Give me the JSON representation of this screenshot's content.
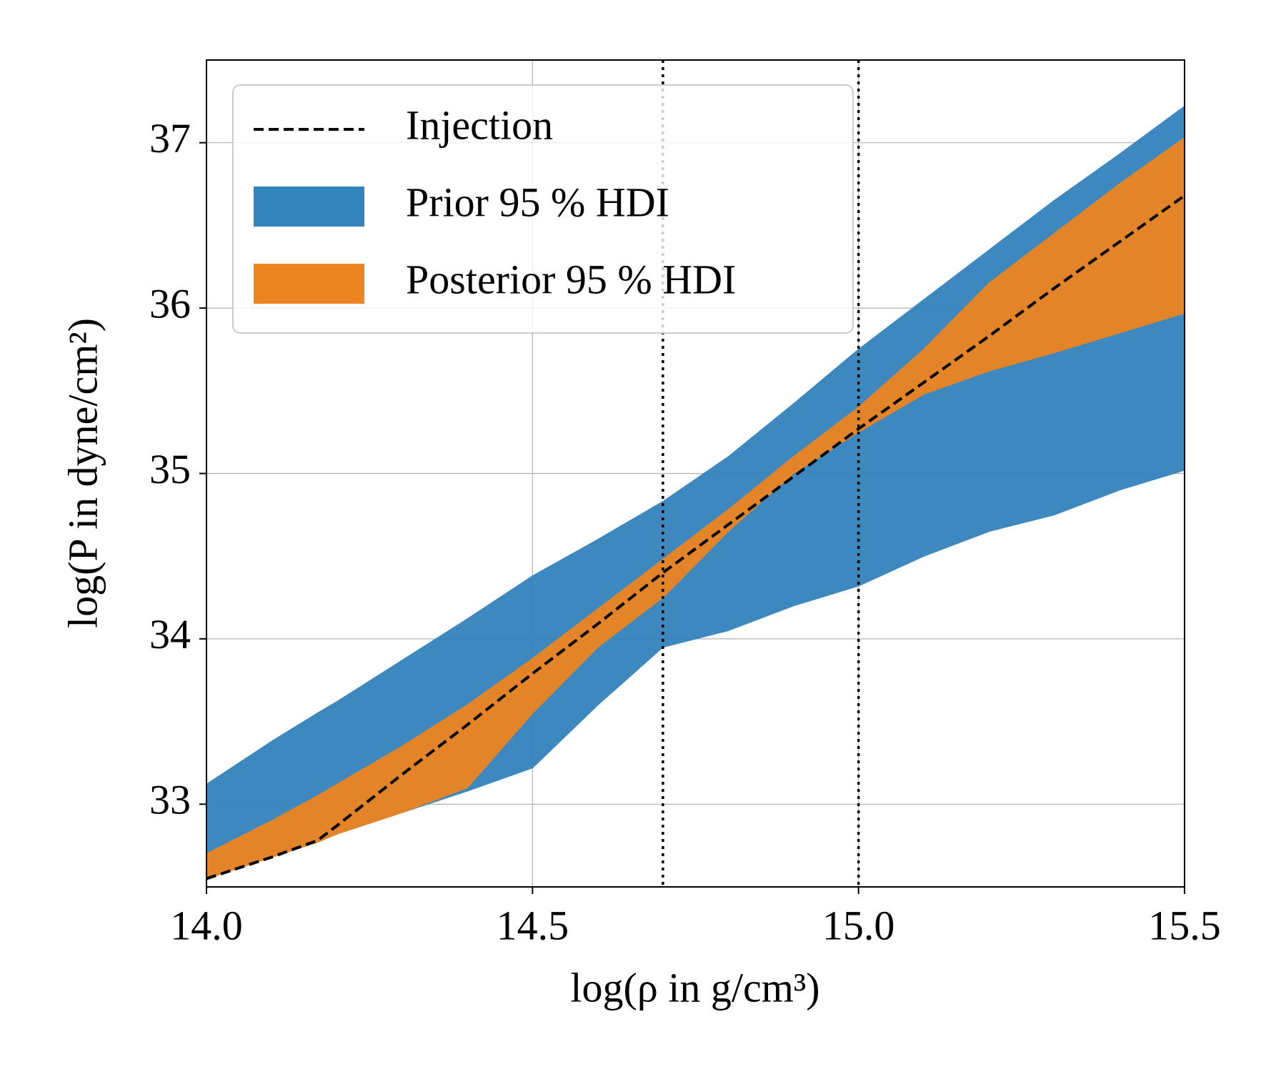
{
  "chart_data": {
    "type": "line",
    "xlabel": "log(ρ in g/cm³)",
    "ylabel": "log(P in dyne/cm²)",
    "x": [
      14.0,
      14.1,
      14.17,
      14.2,
      14.3,
      14.4,
      14.5,
      14.6,
      14.7,
      14.8,
      14.9,
      15.0,
      15.1,
      15.2,
      15.3,
      15.4,
      15.5
    ],
    "series": [
      {
        "name": "Injection",
        "type": "line",
        "color": "#000000",
        "dash": "dashed",
        "values": [
          32.55,
          32.68,
          32.78,
          32.87,
          33.18,
          33.48,
          33.79,
          34.09,
          34.4,
          34.69,
          34.98,
          35.27,
          35.55,
          35.83,
          36.12,
          36.4,
          36.68
        ]
      },
      {
        "name": "Prior 95 % HDI",
        "type": "area",
        "color": "#3383bc",
        "lower": [
          32.55,
          32.68,
          32.77,
          32.82,
          32.95,
          33.08,
          33.22,
          33.6,
          33.95,
          34.05,
          34.2,
          34.32,
          34.5,
          34.65,
          34.75,
          34.9,
          35.02
        ],
        "upper": [
          33.12,
          33.38,
          33.55,
          33.62,
          33.87,
          34.12,
          34.38,
          34.6,
          34.83,
          35.1,
          35.42,
          35.75,
          36.05,
          36.35,
          36.65,
          36.93,
          37.22
        ]
      },
      {
        "name": "Posterior 95 % HDI",
        "type": "area",
        "color": "#ec8420",
        "lower": [
          32.55,
          32.68,
          32.77,
          32.82,
          32.95,
          33.1,
          33.55,
          33.95,
          34.25,
          34.65,
          35.0,
          35.25,
          35.48,
          35.62,
          35.73,
          35.85,
          35.97
        ],
        "upper": [
          32.7,
          32.9,
          33.05,
          33.12,
          33.35,
          33.6,
          33.88,
          34.18,
          34.48,
          34.78,
          35.1,
          35.4,
          35.75,
          36.15,
          36.45,
          36.75,
          37.03
        ]
      }
    ],
    "vlines": [
      14.7,
      15.0
    ],
    "xlim": [
      14.0,
      15.5
    ],
    "ylim": [
      32.5,
      37.5
    ],
    "xticks": [
      {
        "value": 14.0,
        "label": "14.0"
      },
      14.5,
      {
        "value": 15.0,
        "label": "15.0"
      },
      15.5
    ],
    "yticks": [
      33,
      34,
      35,
      36,
      37
    ],
    "grid": true,
    "legend": "upper left"
  }
}
